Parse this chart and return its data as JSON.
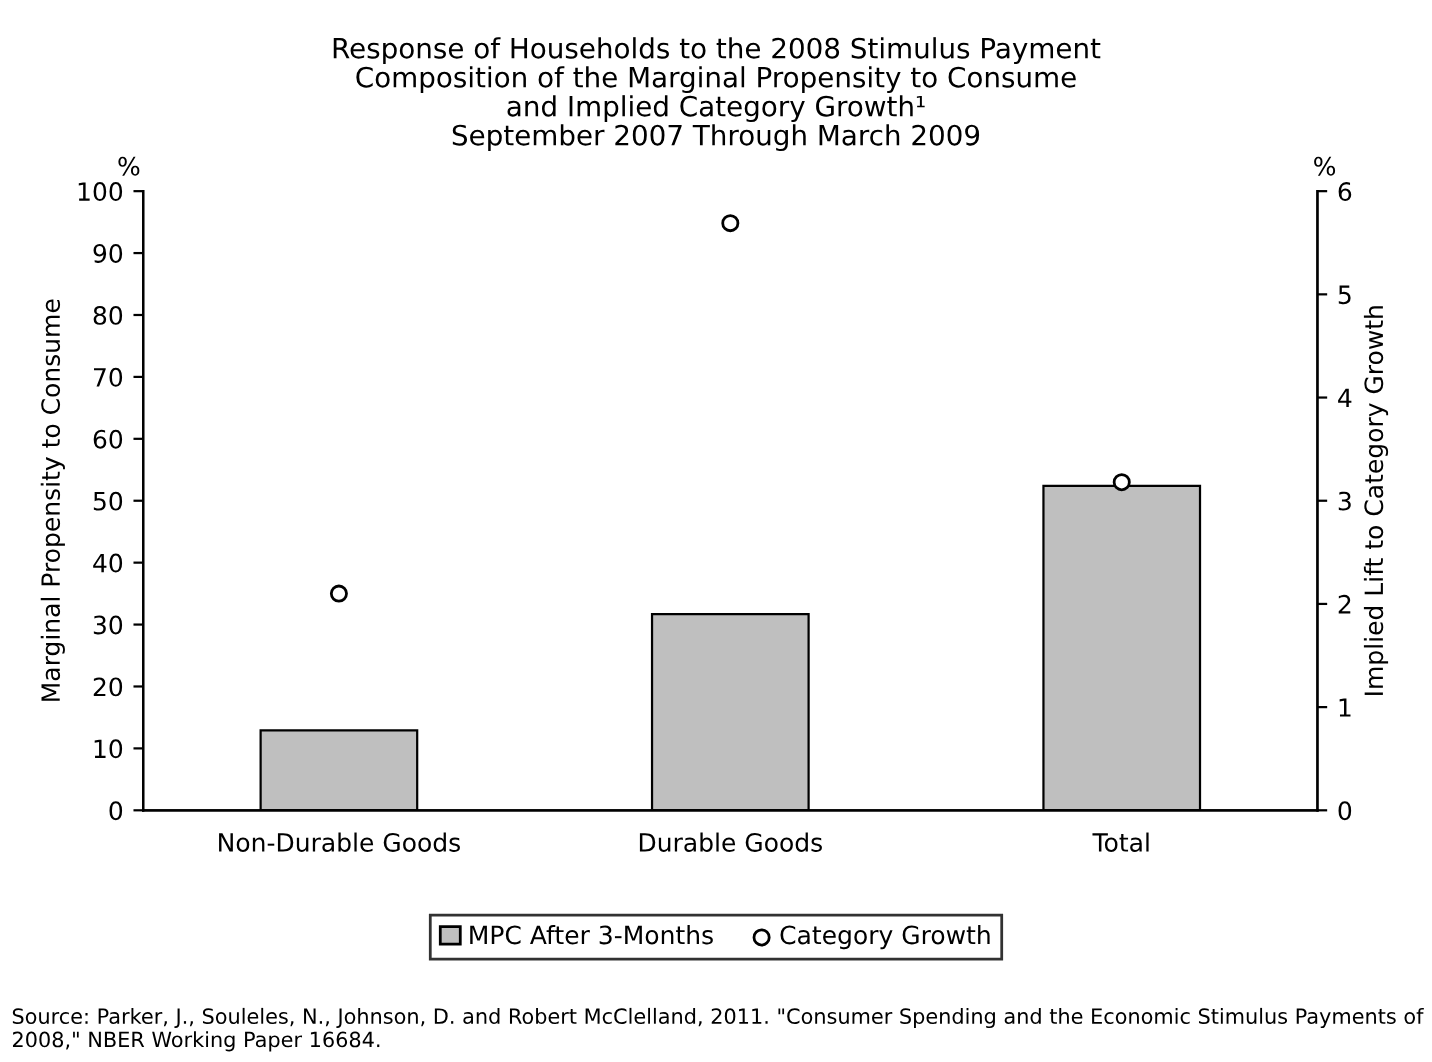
{
  "chart_data": {
    "type": "bar",
    "title": "Response of Households to the 2008 Stimulus Payment\nComposition of the Marginal Propensity to Consume\nand Implied Category Growth¹\nSeptember 2007 Through March 2009",
    "ylabel": "Marginal Propensity to Consume",
    "y2label": "Implied Lift to Category Growth",
    "categories": [
      "Non-Durable Goods",
      "Durable Goods",
      "Total"
    ],
    "series": [
      {
        "name": "MPC After 3-Months",
        "color": "#bfbfbf",
        "values": [
          12.9,
          31.7,
          52.4
        ]
      },
      {
        "name": "Category Growth",
        "type": "scatter",
        "axis": "y2",
        "color": "#ffffff",
        "values": [
          2.1,
          5.69,
          3.18
        ]
      }
    ],
    "ylim": [
      0,
      100
    ],
    "yticks": [
      0,
      10,
      20,
      30,
      40,
      50,
      60,
      70,
      80,
      90,
      100
    ],
    "y2lim": [
      0,
      6
    ],
    "y2ticks": [
      0,
      1,
      2,
      3,
      4,
      5,
      6
    ],
    "marker": "circle",
    "grid": false,
    "legend": "bottom",
    "annotations": [
      "%",
      "%",
      "Source: Parker, J., Souleles, N., Johnson, D. and Robert McClelland, 2011. \"Consumer Spending and the Economic Stimulus Payments of 2008,\" NBER Working Paper 16684."
    ]
  }
}
